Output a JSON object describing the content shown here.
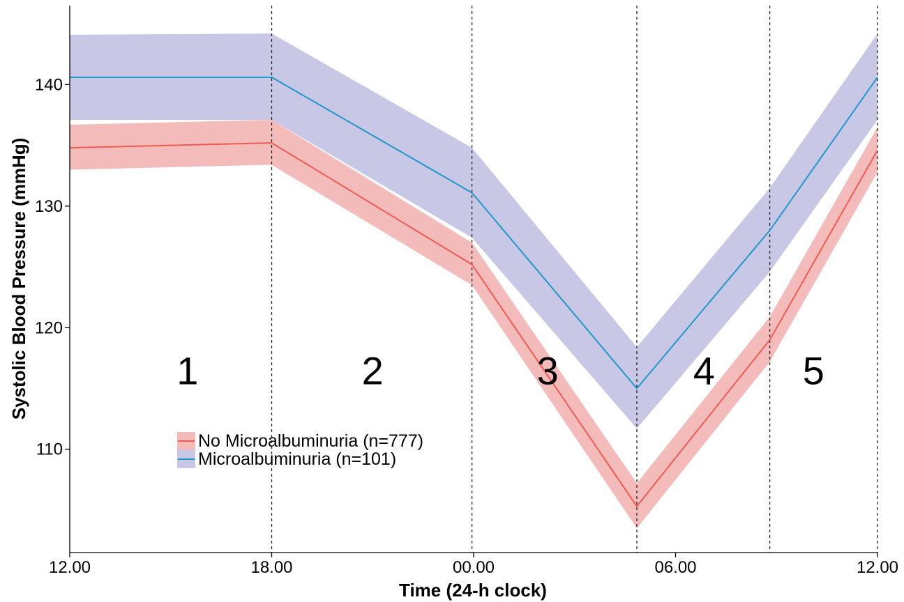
{
  "chart_data": {
    "type": "line",
    "xlabel": "Time (24-h clock)",
    "ylabel": "Systolic Blood Pressure (mmHg)",
    "x_unit": "hours from 12.00",
    "xlim": [
      0,
      24
    ],
    "ylim": [
      101.5,
      146.5
    ],
    "x_ticks": [
      {
        "value": 0,
        "label": "12.00"
      },
      {
        "value": 6,
        "label": "18.00"
      },
      {
        "value": 12,
        "label": "00.00"
      },
      {
        "value": 18,
        "label": "06.00"
      },
      {
        "value": 24,
        "label": "12.00"
      }
    ],
    "y_ticks": [
      {
        "value": 110,
        "label": "110"
      },
      {
        "value": 120,
        "label": "120"
      },
      {
        "value": 130,
        "label": "130"
      },
      {
        "value": 140,
        "label": "140"
      }
    ],
    "grid": false,
    "vlines": [
      6.0,
      11.95,
      16.85,
      20.8,
      24.0
    ],
    "region_labels": [
      {
        "text": "1",
        "x": 3.5,
        "y": 116.5
      },
      {
        "text": "2",
        "x": 9.0,
        "y": 116.5
      },
      {
        "text": "3",
        "x": 14.2,
        "y": 116.5
      },
      {
        "text": "4",
        "x": 18.85,
        "y": 116.5
      },
      {
        "text": "5",
        "x": 22.1,
        "y": 116.5
      }
    ],
    "legend_position": "bottom-left",
    "series": [
      {
        "name": "No Microalbuminuria (n=777)",
        "color": "#F05A50",
        "band_color": "#F4BBBB",
        "x": [
          0,
          6.0,
          11.95,
          16.85,
          20.8,
          24.0
        ],
        "y": [
          134.8,
          135.2,
          125.2,
          105.3,
          119.0,
          134.6
        ],
        "lower": [
          133.0,
          133.4,
          123.5,
          103.5,
          117.2,
          132.8
        ],
        "upper": [
          136.7,
          137.1,
          127.0,
          107.2,
          120.9,
          136.5
        ]
      },
      {
        "name": "Microalbuminuria (n=101)",
        "color": "#1F97C8",
        "band_color": "#C8C8E6",
        "x": [
          0,
          6.0,
          11.95,
          16.85,
          20.8,
          24.0
        ],
        "y": [
          140.6,
          140.6,
          131.1,
          115.0,
          128.0,
          140.6
        ],
        "lower": [
          137.1,
          137.1,
          127.4,
          111.7,
          124.6,
          137.1
        ],
        "upper": [
          144.1,
          144.2,
          134.8,
          118.4,
          131.5,
          144.2
        ]
      }
    ]
  }
}
